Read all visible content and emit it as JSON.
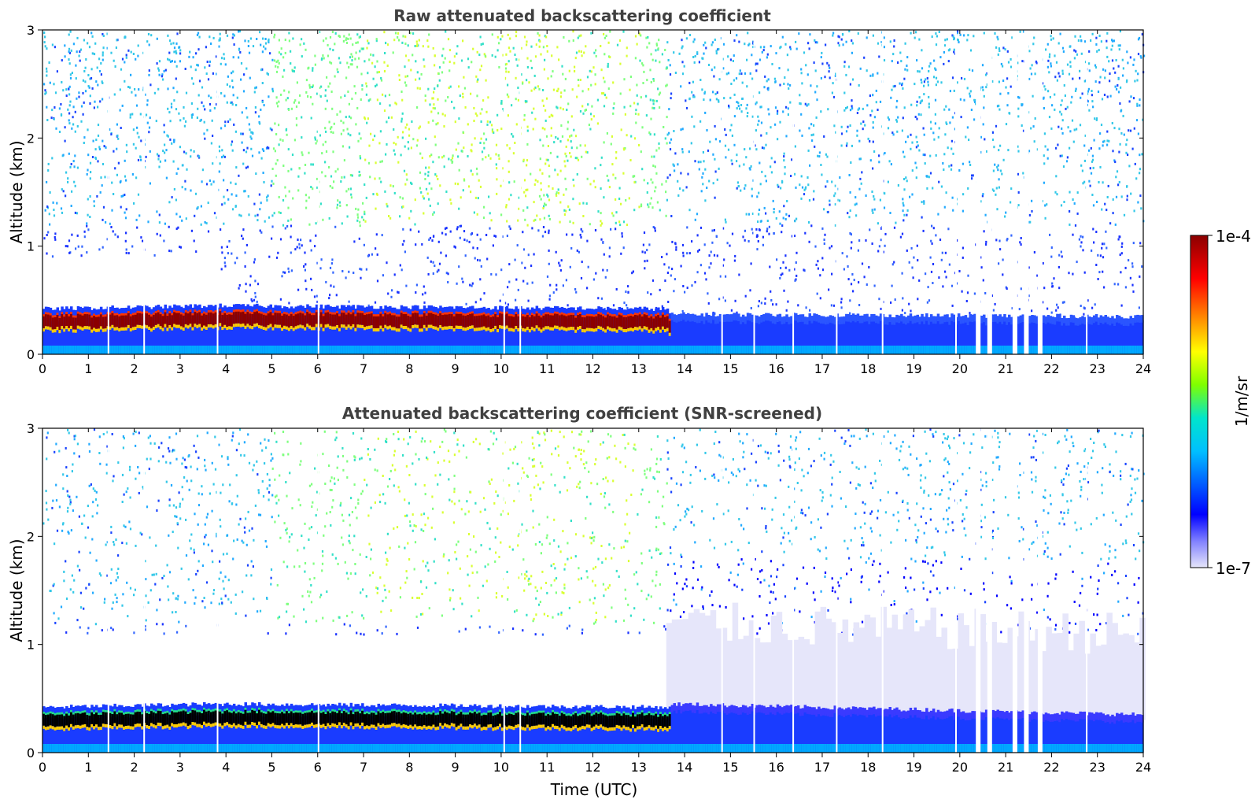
{
  "chart_data": [
    {
      "type": "heatmap",
      "title": "Raw attenuated backscattering coefficient",
      "xlabel": "",
      "ylabel": "Altitude (km)",
      "xlim": [
        0,
        24
      ],
      "ylim": [
        0,
        3
      ],
      "xticks": [
        "0",
        "1",
        "2",
        "3",
        "4",
        "5",
        "6",
        "7",
        "8",
        "9",
        "10",
        "11",
        "12",
        "13",
        "14",
        "15",
        "16",
        "17",
        "18",
        "19",
        "20",
        "21",
        "22",
        "23",
        "24"
      ],
      "yticks": [
        "0",
        "1",
        "2",
        "3"
      ],
      "grid": false,
      "screened": false,
      "layer_top_km": [
        {
          "t": 0,
          "top": 0.42,
          "color": "dark red"
        },
        {
          "t": 3.8,
          "top": 0.45,
          "color": "dark red"
        },
        {
          "t": 13.6,
          "top": 0.42,
          "color": "dark red"
        },
        {
          "t": 13.7,
          "top": 0.32,
          "color": "blue"
        },
        {
          "t": 24,
          "top": 0.3,
          "color": "blue"
        }
      ],
      "data_gaps_utc": [
        1.42,
        2.2,
        3.8,
        6.0,
        10.05,
        10.4,
        14.8,
        15.5,
        16.35,
        17.3,
        18.3,
        19.9,
        20.35,
        20.6,
        21.15,
        21.4,
        21.7,
        22.75
      ]
    },
    {
      "type": "heatmap",
      "title": "Attenuated backscattering coefficient (SNR-screened)",
      "xlabel": "Time (UTC)",
      "ylabel": "Altitude (km)",
      "xlim": [
        0,
        24
      ],
      "ylim": [
        0,
        3
      ],
      "xticks": [
        "0",
        "1",
        "2",
        "3",
        "4",
        "5",
        "6",
        "7",
        "8",
        "9",
        "10",
        "11",
        "12",
        "13",
        "14",
        "15",
        "16",
        "17",
        "18",
        "19",
        "20",
        "21",
        "22",
        "23",
        "24"
      ],
      "yticks": [
        "0",
        "1",
        "2",
        "3"
      ],
      "grid": false,
      "screened": true,
      "layer_top_km": [
        {
          "t": 0,
          "top": 0.42,
          "color": "black"
        },
        {
          "t": 3.8,
          "top": 0.45,
          "color": "black"
        },
        {
          "t": 13.6,
          "top": 0.42,
          "color": "black"
        },
        {
          "t": 13.7,
          "top": 0.4,
          "color": "blue"
        },
        {
          "t": 24,
          "top": 0.3,
          "color": "blue"
        }
      ],
      "data_gaps_utc": [
        1.42,
        2.2,
        3.8,
        6.0,
        10.05,
        10.4,
        14.8,
        15.5,
        16.35,
        17.3,
        18.3,
        19.9,
        20.35,
        20.6,
        21.15,
        21.4,
        21.7,
        22.75
      ]
    }
  ],
  "colorbar": {
    "label": "1/m/sr",
    "max_label": "1e-4",
    "min_label": "1e-7",
    "min_value": 1e-07,
    "max_value": 0.0001,
    "scale": "log",
    "colormap": [
      "#e6e6fa",
      "#0000ff",
      "#00bfff",
      "#00ffcc",
      "#7fff00",
      "#ffff00",
      "#ff8c00",
      "#ff0000",
      "#8b0000"
    ]
  }
}
